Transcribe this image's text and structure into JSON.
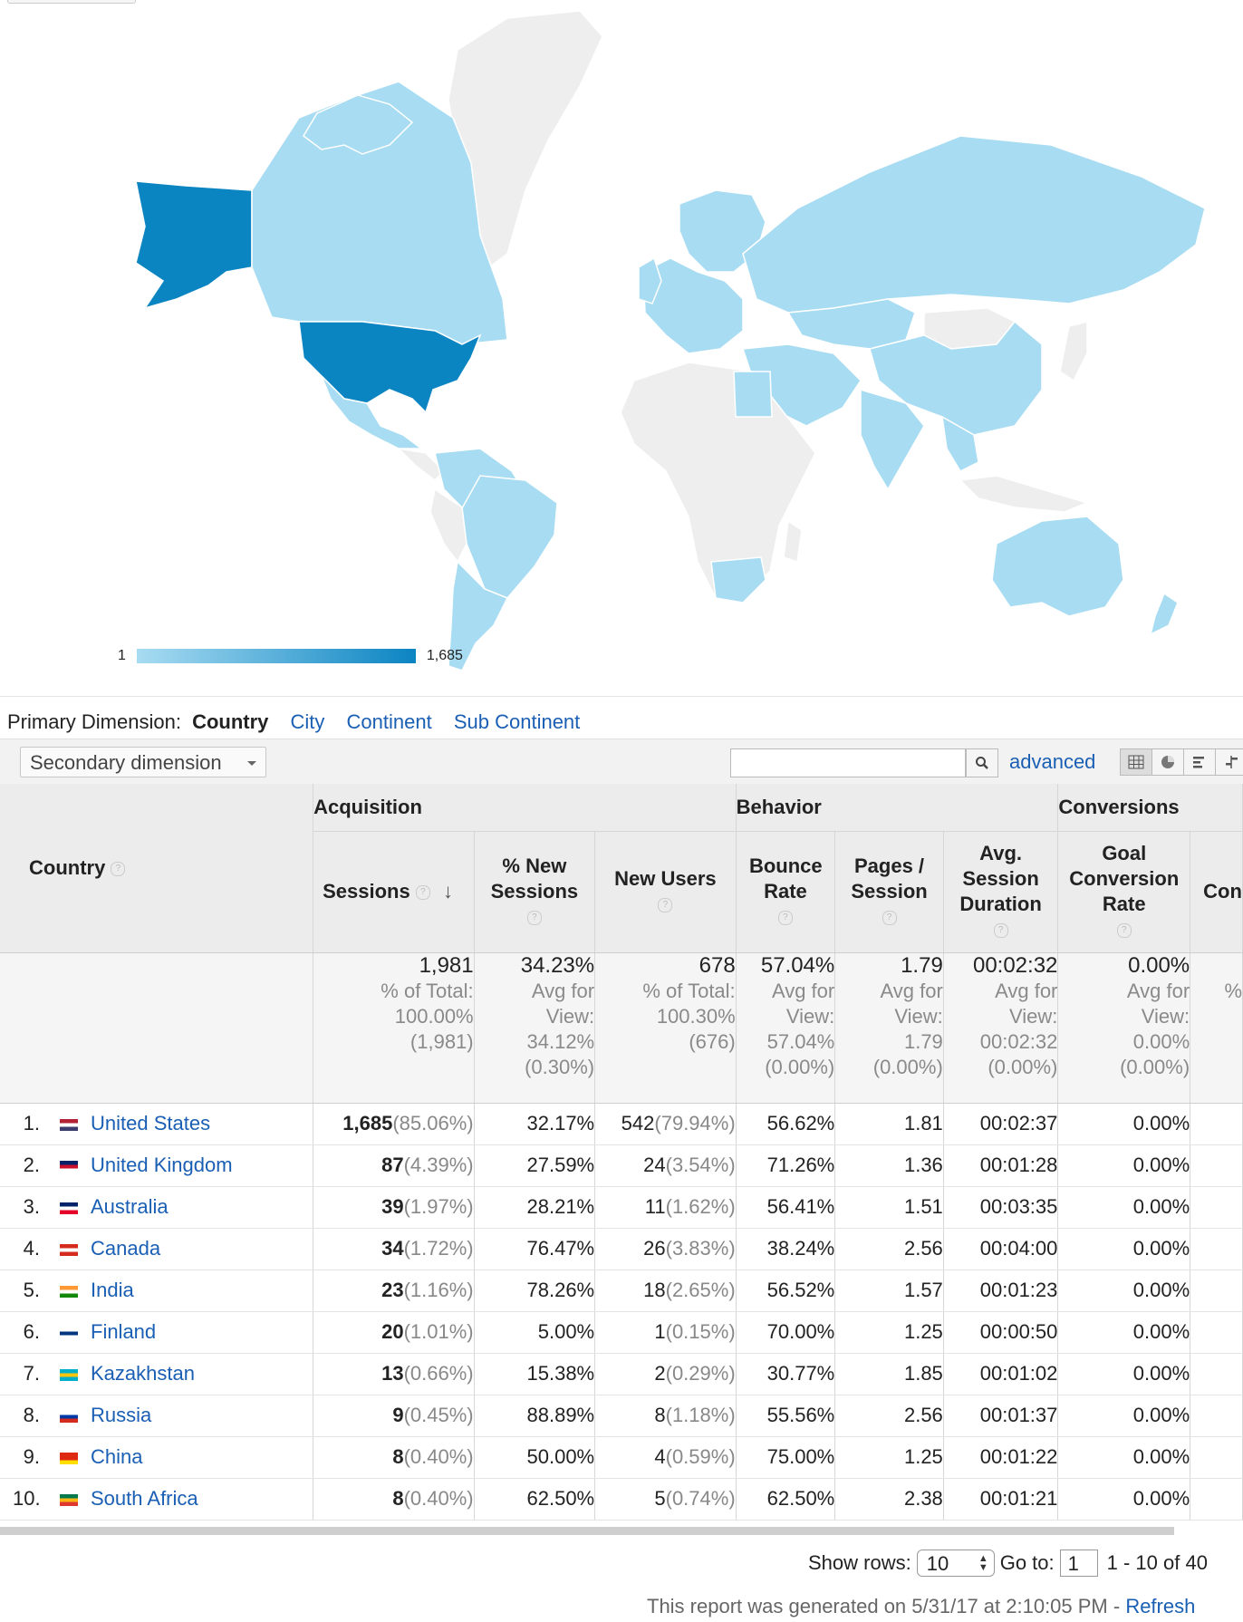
{
  "map": {
    "legend_min": "1",
    "legend_max": "1,685",
    "colors": {
      "high": "#0b84c2",
      "low": "#a8dcf2",
      "none": "#eeeeee"
    }
  },
  "primary_dimension": {
    "label": "Primary Dimension:",
    "selected": "Country",
    "options": [
      "City",
      "Continent",
      "Sub Continent"
    ]
  },
  "toolbar": {
    "secondary_dimension": "Secondary dimension",
    "search_value": "",
    "advanced_label": "advanced"
  },
  "table": {
    "groups": {
      "acquisition": "Acquisition",
      "behavior": "Behavior",
      "conversions": "Conversions"
    },
    "headers": {
      "country": "Country",
      "sessions": "Sessions",
      "new_sessions": "% New Sessions",
      "new_users": "New Users",
      "bounce_rate": "Bounce Rate",
      "pages_session": "Pages / Session",
      "avg_duration": "Avg. Session Duration",
      "goal_conv": "Goal Conversion Rate",
      "extra": "Con"
    },
    "totals": {
      "sessions": {
        "value": "1,981",
        "l1": "% of Total:",
        "l2": "100.00%",
        "l3": "(1,981)"
      },
      "new_sessions": {
        "value": "34.23%",
        "l1": "Avg for",
        "l2": "View:",
        "l3": "34.12%",
        "l4": "(0.30%)"
      },
      "new_users": {
        "value": "678",
        "l1": "% of Total:",
        "l2": "100.30%",
        "l3": "(676)"
      },
      "bounce_rate": {
        "value": "57.04%",
        "l1": "Avg for",
        "l2": "View:",
        "l3": "57.04%",
        "l4": "(0.00%)"
      },
      "pages_session": {
        "value": "1.79",
        "l1": "Avg for",
        "l2": "View:",
        "l3": "1.79",
        "l4": "(0.00%)"
      },
      "avg_duration": {
        "value": "00:02:32",
        "l1": "Avg for",
        "l2": "View:",
        "l3": "00:02:32",
        "l4": "(0.00%)"
      },
      "goal_conv": {
        "value": "0.00%",
        "l1": "Avg for",
        "l2": "View:",
        "l3": "0.00%",
        "l4": "(0.00%)"
      },
      "extra": {
        "l1": "%"
      }
    },
    "rows": [
      {
        "num": "1.",
        "country": "United States",
        "sessions": "1,685",
        "sessions_pct": "(85.06%)",
        "new_sessions": "32.17%",
        "new_users": "542",
        "new_users_pct": "(79.94%)",
        "bounce": "56.62%",
        "pages": "1.81",
        "duration": "00:02:37",
        "goal": "0.00%"
      },
      {
        "num": "2.",
        "country": "United Kingdom",
        "sessions": "87",
        "sessions_pct": "(4.39%)",
        "new_sessions": "27.59%",
        "new_users": "24",
        "new_users_pct": "(3.54%)",
        "bounce": "71.26%",
        "pages": "1.36",
        "duration": "00:01:28",
        "goal": "0.00%"
      },
      {
        "num": "3.",
        "country": "Australia",
        "sessions": "39",
        "sessions_pct": "(1.97%)",
        "new_sessions": "28.21%",
        "new_users": "11",
        "new_users_pct": "(1.62%)",
        "bounce": "56.41%",
        "pages": "1.51",
        "duration": "00:03:35",
        "goal": "0.00%"
      },
      {
        "num": "4.",
        "country": "Canada",
        "sessions": "34",
        "sessions_pct": "(1.72%)",
        "new_sessions": "76.47%",
        "new_users": "26",
        "new_users_pct": "(3.83%)",
        "bounce": "38.24%",
        "pages": "2.56",
        "duration": "00:04:00",
        "goal": "0.00%"
      },
      {
        "num": "5.",
        "country": "India",
        "sessions": "23",
        "sessions_pct": "(1.16%)",
        "new_sessions": "78.26%",
        "new_users": "18",
        "new_users_pct": "(2.65%)",
        "bounce": "56.52%",
        "pages": "1.57",
        "duration": "00:01:23",
        "goal": "0.00%"
      },
      {
        "num": "6.",
        "country": "Finland",
        "sessions": "20",
        "sessions_pct": "(1.01%)",
        "new_sessions": "5.00%",
        "new_users": "1",
        "new_users_pct": "(0.15%)",
        "bounce": "70.00%",
        "pages": "1.25",
        "duration": "00:00:50",
        "goal": "0.00%"
      },
      {
        "num": "7.",
        "country": "Kazakhstan",
        "sessions": "13",
        "sessions_pct": "(0.66%)",
        "new_sessions": "15.38%",
        "new_users": "2",
        "new_users_pct": "(0.29%)",
        "bounce": "30.77%",
        "pages": "1.85",
        "duration": "00:01:02",
        "goal": "0.00%"
      },
      {
        "num": "8.",
        "country": "Russia",
        "sessions": "9",
        "sessions_pct": "(0.45%)",
        "new_sessions": "88.89%",
        "new_users": "8",
        "new_users_pct": "(1.18%)",
        "bounce": "55.56%",
        "pages": "2.56",
        "duration": "00:01:37",
        "goal": "0.00%"
      },
      {
        "num": "9.",
        "country": "China",
        "sessions": "8",
        "sessions_pct": "(0.40%)",
        "new_sessions": "50.00%",
        "new_users": "4",
        "new_users_pct": "(0.59%)",
        "bounce": "75.00%",
        "pages": "1.25",
        "duration": "00:01:22",
        "goal": "0.00%"
      },
      {
        "num": "10.",
        "country": "South Africa",
        "sessions": "8",
        "sessions_pct": "(0.40%)",
        "new_sessions": "62.50%",
        "new_users": "5",
        "new_users_pct": "(0.74%)",
        "bounce": "62.50%",
        "pages": "2.38",
        "duration": "00:01:21",
        "goal": "0.00%"
      }
    ]
  },
  "pager": {
    "show_rows_label": "Show rows:",
    "rows_value": "10",
    "goto_label": "Go to:",
    "goto_value": "1",
    "range": "1 - 10 of 40"
  },
  "footer": {
    "text": "This report was generated on 5/31/17 at 2:10:05 PM - ",
    "refresh": "Refresh"
  }
}
